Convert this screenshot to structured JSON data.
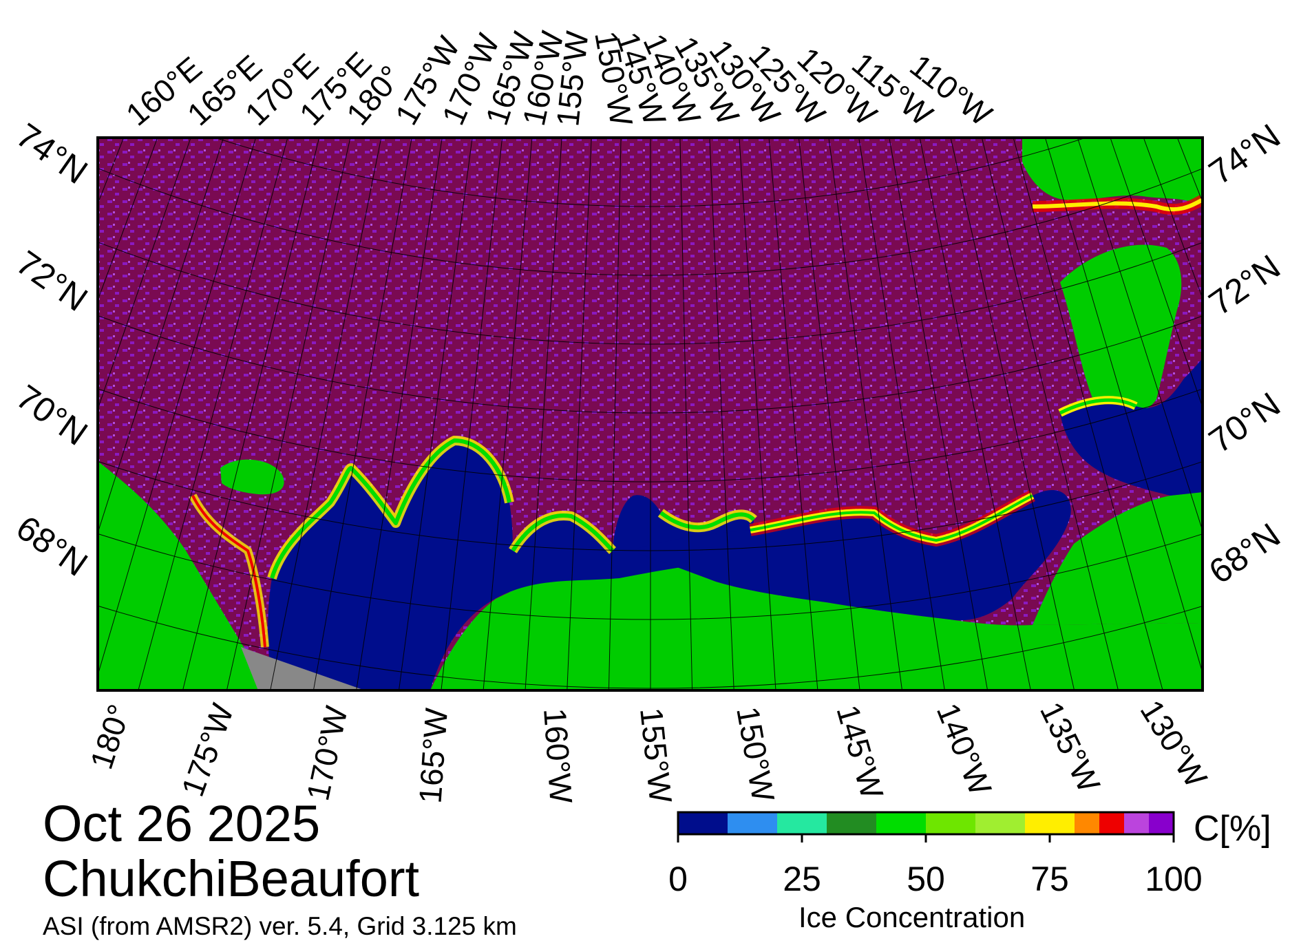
{
  "date": "Oct 26 2025",
  "region": "ChukchiBeaufort",
  "source": "ASI (from AMSR2) ver. 5.4,  Grid 3.125 km",
  "top_lon_labels": [
    "160°E",
    "165°E",
    "170°E",
    "175°E",
    "180°",
    "175°W",
    "170°W",
    "165°W",
    "160°W",
    "155°W",
    "150°W",
    "145°W",
    "140°W",
    "135°W",
    "130°W",
    "125°W",
    "120°W",
    "115°W",
    "110°W"
  ],
  "bottom_lon_labels": [
    "180°",
    "175°W",
    "170°W",
    "165°W",
    "160°W",
    "155°W",
    "150°W",
    "145°W",
    "140°W",
    "135°W",
    "130°W"
  ],
  "left_lat_labels": [
    "74°N",
    "72°N",
    "70°N",
    "68°N"
  ],
  "right_lat_labels": [
    "74°N",
    "72°N",
    "70°N",
    "68°N"
  ],
  "colorbar": {
    "title": "Ice Concentration",
    "unit": "C[%]",
    "tick_labels": [
      "0",
      "25",
      "50",
      "75",
      "100"
    ],
    "tick_values": [
      0,
      25,
      50,
      75,
      100
    ],
    "bins": [
      {
        "from": 0,
        "to": 10,
        "color": "#000d8c"
      },
      {
        "from": 10,
        "to": 20,
        "color": "#2e8ef0"
      },
      {
        "from": 20,
        "to": 30,
        "color": "#25e8a0"
      },
      {
        "from": 30,
        "to": 40,
        "color": "#228c22"
      },
      {
        "from": 40,
        "to": 50,
        "color": "#00dd00"
      },
      {
        "from": 50,
        "to": 60,
        "color": "#6ee600"
      },
      {
        "from": 60,
        "to": 70,
        "color": "#a0ee30"
      },
      {
        "from": 70,
        "to": 80,
        "color": "#ffee00"
      },
      {
        "from": 80,
        "to": 85,
        "color": "#ff8800"
      },
      {
        "from": 85,
        "to": 90,
        "color": "#ee0000"
      },
      {
        "from": 90,
        "to": 95,
        "color": "#bb44dd"
      },
      {
        "from": 95,
        "to": 100,
        "color": "#8800cc"
      }
    ]
  },
  "colors": {
    "high_ice": "#7a0a52",
    "ice_texture": "#8a1ac0",
    "open_water": "#000d8c",
    "land": "#00cc00",
    "no_data": "#888888"
  }
}
